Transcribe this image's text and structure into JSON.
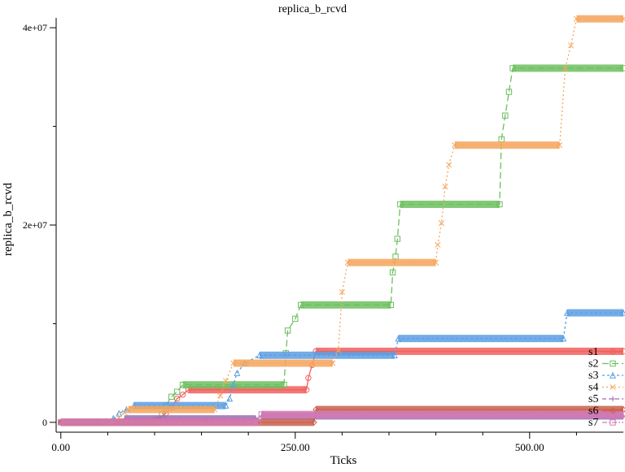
{
  "chart_data": {
    "type": "line",
    "title": "replica_b_rcvd",
    "xlabel": "Ticks",
    "ylabel": "replica_b_rcvd",
    "xlim": [
      -5,
      600
    ],
    "ylim": [
      -1000000,
      41000000
    ],
    "x_ticks": [
      {
        "value": 0,
        "label": "0.00"
      },
      {
        "value": 250,
        "label": "250.00"
      },
      {
        "value": 500,
        "label": "500.00"
      }
    ],
    "x_minor_ticks": [
      50,
      100,
      150,
      200,
      300,
      350,
      400,
      450,
      550
    ],
    "y_ticks": [
      {
        "value": 0,
        "label": "0"
      },
      {
        "value": 20000000,
        "label": "2e+07"
      },
      {
        "value": 40000000,
        "label": "4e+07"
      }
    ],
    "y_minor_ticks": [
      10000000,
      30000000
    ],
    "grid": false,
    "legend_position": "bottom-right",
    "series": [
      {
        "name": "s1",
        "color": "#f0605d",
        "marker": "circle",
        "dash": "",
        "points": [
          [
            0,
            0
          ],
          [
            100,
            0
          ],
          [
            102,
            300000
          ],
          [
            112,
            900000
          ],
          [
            118,
            1500000
          ],
          [
            124,
            2400000
          ],
          [
            130,
            2800000
          ],
          [
            136,
            3300000
          ],
          [
            262,
            3300000
          ],
          [
            264,
            4500000
          ],
          [
            268,
            5800000
          ],
          [
            272,
            7200000
          ],
          [
            600,
            7200000
          ]
        ]
      },
      {
        "name": "s2",
        "color": "#6cbf5e",
        "marker": "square",
        "dash": "8,4",
        "points": [
          [
            0,
            0
          ],
          [
            105,
            0
          ],
          [
            108,
            800000
          ],
          [
            112,
            1700000
          ],
          [
            118,
            2600000
          ],
          [
            124,
            3100000
          ],
          [
            130,
            3800000
          ],
          [
            238,
            3800000
          ],
          [
            240,
            7000000
          ],
          [
            242,
            9300000
          ],
          [
            250,
            10500000
          ],
          [
            256,
            11900000
          ],
          [
            352,
            11900000
          ],
          [
            354,
            15200000
          ],
          [
            357,
            16800000
          ],
          [
            359,
            18600000
          ],
          [
            362,
            22100000
          ],
          [
            468,
            22100000
          ],
          [
            470,
            28700000
          ],
          [
            474,
            31100000
          ],
          [
            478,
            33500000
          ],
          [
            482,
            35900000
          ],
          [
            600,
            35900000
          ]
        ]
      },
      {
        "name": "s3",
        "color": "#5a9ee3",
        "marker": "triangle",
        "dash": "3,3",
        "points": [
          [
            0,
            0
          ],
          [
            52,
            0
          ],
          [
            56,
            400000
          ],
          [
            62,
            900000
          ],
          [
            70,
            1300000
          ],
          [
            78,
            1700000
          ],
          [
            176,
            1700000
          ],
          [
            180,
            2400000
          ],
          [
            184,
            3800000
          ],
          [
            188,
            5000000
          ],
          [
            196,
            6000000
          ],
          [
            212,
            6800000
          ],
          [
            356,
            6800000
          ],
          [
            360,
            8500000
          ],
          [
            536,
            8500000
          ],
          [
            540,
            11100000
          ],
          [
            600,
            11100000
          ]
        ]
      },
      {
        "name": "s4",
        "color": "#f5a55c",
        "marker": "x",
        "dash": "2,3",
        "points": [
          [
            0,
            0
          ],
          [
            58,
            0
          ],
          [
            62,
            500000
          ],
          [
            68,
            1000000
          ],
          [
            72,
            1300000
          ],
          [
            164,
            1300000
          ],
          [
            170,
            2700000
          ],
          [
            176,
            4200000
          ],
          [
            184,
            6000000
          ],
          [
            290,
            6000000
          ],
          [
            296,
            7300000
          ],
          [
            300,
            13200000
          ],
          [
            306,
            16200000
          ],
          [
            400,
            16200000
          ],
          [
            402,
            18000000
          ],
          [
            406,
            20200000
          ],
          [
            410,
            23900000
          ],
          [
            414,
            26100000
          ],
          [
            420,
            28100000
          ],
          [
            532,
            28100000
          ],
          [
            538,
            35900000
          ],
          [
            544,
            38200000
          ],
          [
            550,
            40900000
          ],
          [
            600,
            40900000
          ]
        ]
      },
      {
        "name": "s5",
        "color": "#a06ab4",
        "marker": "plus",
        "dash": "5,3",
        "points": [
          [
            0,
            0
          ],
          [
            44,
            0
          ],
          [
            48,
            150000
          ],
          [
            58,
            250000
          ],
          [
            68,
            350000
          ],
          [
            208,
            350000
          ],
          [
            214,
            650000
          ],
          [
            600,
            650000
          ]
        ]
      },
      {
        "name": "s6",
        "color": "#c8604e",
        "marker": "diamond",
        "dash": "",
        "points": [
          [
            0,
            0
          ],
          [
            270,
            0
          ],
          [
            272,
            1300000
          ],
          [
            600,
            1300000
          ]
        ]
      },
      {
        "name": "s7",
        "color": "#d47ab4",
        "marker": "square",
        "dash": "6,2,2,2",
        "points": [
          [
            0,
            0
          ],
          [
            210,
            0
          ],
          [
            214,
            800000
          ],
          [
            600,
            800000
          ]
        ]
      }
    ]
  }
}
